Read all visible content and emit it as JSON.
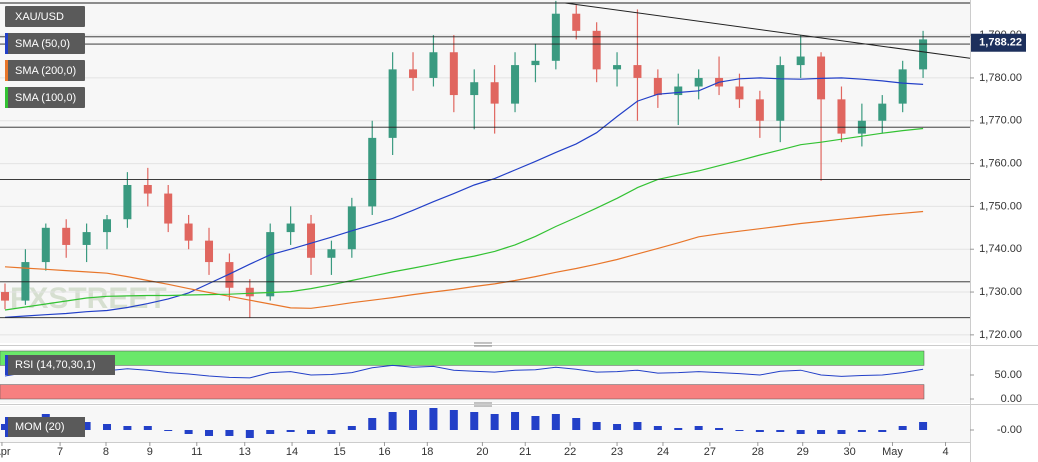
{
  "chart_data": [
    {
      "type": "candlestick",
      "symbol": "XAU/USD",
      "watermark": "FXSTREET",
      "last_price": {
        "value": 1788.22,
        "label": "1,788.22"
      },
      "xlim": [
        -0.245,
        47.3
      ],
      "xticks": [
        {
          "value": -0.15,
          "label": "Apr"
        },
        {
          "value": 2.7,
          "label": "7"
        },
        {
          "value": 4.95,
          "label": "8"
        },
        {
          "value": 7.1,
          "label": "9"
        },
        {
          "value": 9.4,
          "label": "11"
        },
        {
          "value": 11.75,
          "label": "13"
        },
        {
          "value": 14.07,
          "label": "14"
        },
        {
          "value": 16.4,
          "label": "15"
        },
        {
          "value": 18.6,
          "label": "16"
        },
        {
          "value": 20.7,
          "label": "18"
        },
        {
          "value": 23.4,
          "label": "20"
        },
        {
          "value": 25.5,
          "label": "21"
        },
        {
          "value": 27.7,
          "label": "22"
        },
        {
          "value": 30.0,
          "label": "23"
        },
        {
          "value": 32.25,
          "label": "24"
        },
        {
          "value": 34.55,
          "label": "27"
        },
        {
          "value": 36.9,
          "label": "28"
        },
        {
          "value": 39.1,
          "label": "29"
        },
        {
          "value": 41.4,
          "label": "30"
        },
        {
          "value": 43.5,
          "label": "May"
        },
        {
          "value": 46.1,
          "label": "4"
        }
      ],
      "ylim": [
        1718.1,
        1798.2
      ],
      "yticks": [
        {
          "value": 1720,
          "label": "1,720.00"
        },
        {
          "value": 1730,
          "label": "1,730.00"
        },
        {
          "value": 1740,
          "label": "1,740.00"
        },
        {
          "value": 1750,
          "label": "1,750.00"
        },
        {
          "value": 1760,
          "label": "1,760.00"
        },
        {
          "value": 1770,
          "label": "1,770.00"
        },
        {
          "value": 1780,
          "label": "1,780.00"
        },
        {
          "value": 1790,
          "label": "1,790.00"
        }
      ],
      "grid": true,
      "up_color": "#3a9a80",
      "down_color": "#e0665f",
      "open": [
        1730,
        1728,
        1737,
        1745,
        1741,
        1744,
        1747,
        1755,
        1753,
        1746,
        1742,
        1737,
        1731,
        1729,
        1744,
        1746,
        1738,
        1740,
        1750,
        1766,
        1782,
        1780,
        1786,
        1776,
        1779,
        1774,
        1783,
        1784,
        1795,
        1791,
        1782,
        1783,
        1780,
        1776,
        1778,
        1780,
        1778,
        1775,
        1770,
        1783,
        1785,
        1775,
        1767,
        1770,
        1774,
        1782
      ],
      "high": [
        1732,
        1740,
        1746,
        1747,
        1746,
        1748,
        1758,
        1759,
        1755,
        1748,
        1745,
        1739,
        1733,
        1746,
        1750,
        1748,
        1742,
        1752,
        1770,
        1786,
        1786,
        1790,
        1790,
        1782,
        1783,
        1786,
        1788,
        1798,
        1797,
        1793,
        1786,
        1796,
        1782,
        1781,
        1782,
        1785,
        1781,
        1777,
        1785,
        1790,
        1786,
        1778,
        1774,
        1776,
        1784,
        1791
      ],
      "low": [
        1726,
        1727,
        1735,
        1738,
        1737,
        1740,
        1745,
        1750,
        1744,
        1740,
        1734,
        1728,
        1724,
        1728,
        1741,
        1734,
        1734,
        1738,
        1748,
        1762,
        1777,
        1778,
        1772,
        1768,
        1767,
        1772,
        1779,
        1782,
        1789,
        1779,
        1778,
        1770,
        1773,
        1769,
        1775,
        1776,
        1773,
        1766,
        1765,
        1780,
        1756,
        1765,
        1764,
        1767,
        1772,
        1780
      ],
      "close": [
        1728,
        1737,
        1745,
        1741,
        1744,
        1747,
        1755,
        1753,
        1746,
        1742,
        1737,
        1731,
        1729,
        1744,
        1746,
        1738,
        1740,
        1750,
        1766,
        1782,
        1780,
        1786,
        1776,
        1779,
        1774,
        1783,
        1784,
        1795,
        1791,
        1782,
        1783,
        1780,
        1776,
        1778,
        1780,
        1778,
        1775,
        1770,
        1783,
        1785,
        1775,
        1767,
        1770,
        1774,
        1782,
        1789
      ],
      "series": [
        {
          "name": "SMA (50,0)",
          "color": "#2340c8",
          "values": [
            1724.1,
            1724.4,
            1724.7,
            1725,
            1725.4,
            1725.7,
            1726.4,
            1727.3,
            1728.4,
            1729.8,
            1732,
            1734.2,
            1736.5,
            1738.7,
            1740,
            1741.4,
            1742.8,
            1744.3,
            1745.7,
            1747.2,
            1749.1,
            1751.1,
            1753,
            1755,
            1756.5,
            1758.5,
            1760.5,
            1762.6,
            1764.6,
            1767.2,
            1771,
            1774.6,
            1776.2,
            1776.6,
            1777,
            1779,
            1779.8,
            1780,
            1779.8,
            1779.7,
            1779.9,
            1780,
            1779.7,
            1779.3,
            1778.8,
            1778.5
          ]
        },
        {
          "name": "SMA (200,0)",
          "color": "#e8762a",
          "values": [
            1735.9,
            1735.6,
            1735.3,
            1735,
            1734.7,
            1734.4,
            1733.6,
            1732.7,
            1731.8,
            1730.8,
            1729.9,
            1729,
            1728.1,
            1727.2,
            1726.3,
            1726.2,
            1726.8,
            1727.5,
            1728.1,
            1728.7,
            1729.4,
            1730,
            1730.6,
            1731.3,
            1731.9,
            1732.7,
            1733.6,
            1734.6,
            1735.5,
            1736.5,
            1737.6,
            1738.9,
            1740.2,
            1741.5,
            1742.9,
            1743.6,
            1744.2,
            1744.8,
            1745.4,
            1746,
            1746.5,
            1747,
            1747.5,
            1748,
            1748.4,
            1748.8
          ]
        },
        {
          "name": "SMA (100,0)",
          "color": "#33c233",
          "values": [
            1725.8,
            1726.5,
            1727.2,
            1727.9,
            1728.6,
            1729,
            1729.1,
            1729.2,
            1729.2,
            1729.3,
            1729.4,
            1729.5,
            1729.7,
            1729.9,
            1730.1,
            1730.8,
            1731.7,
            1732.7,
            1733.7,
            1734.7,
            1735.6,
            1736.5,
            1737.5,
            1738.4,
            1739.5,
            1741,
            1743,
            1745.3,
            1747.4,
            1749.6,
            1751.9,
            1754.4,
            1756.3,
            1757.3,
            1758.3,
            1759.5,
            1760.7,
            1762,
            1763.2,
            1764.4,
            1765,
            1765.7,
            1766.4,
            1767.1,
            1767.7,
            1768.2
          ]
        }
      ],
      "levels": [
        1797.5,
        1789.6,
        1787.9,
        1768.5,
        1756.3,
        1732.4,
        1724
      ],
      "level_color": "#222222",
      "trendline": {
        "x": [
          27.45,
          47.3
        ],
        "y": [
          1797.5,
          1784.6
        ]
      }
    },
    {
      "type": "line",
      "ylim": [
        0,
        100
      ],
      "yticks": [
        {
          "value": 50,
          "label": "50.00"
        },
        {
          "value": 0,
          "label": "0.00"
        }
      ],
      "bands": [
        {
          "range": [
            70,
            100
          ],
          "color": "#6ae86a"
        },
        {
          "range": [
            0,
            30
          ],
          "color": "#f78080"
        }
      ],
      "series": [
        {
          "name": "RSI (14,70,30,1)",
          "color": "#2340c8",
          "values": [
            48,
            55,
            60,
            57,
            58,
            59,
            63,
            60,
            55,
            52,
            48,
            45,
            44,
            55,
            57,
            50,
            51,
            55,
            65,
            70,
            66,
            68,
            60,
            58,
            56,
            60,
            61,
            66,
            62,
            56,
            57,
            60,
            54,
            55,
            57,
            55,
            53,
            50,
            58,
            60,
            50,
            47,
            49,
            50,
            55,
            62
          ]
        }
      ]
    },
    {
      "type": "bar",
      "ylim": [
        -5,
        11
      ],
      "yticks": [
        {
          "value": 0,
          "label": "-0.00"
        }
      ],
      "series": [
        {
          "name": "MOM (20)",
          "color": "#2340c8",
          "values": [
            3,
            5,
            8,
            6,
            4,
            3,
            2,
            2,
            0,
            -2,
            -3,
            -3,
            -4,
            -2,
            -1,
            -2,
            -2,
            2,
            6,
            9,
            10,
            11,
            10,
            9,
            8,
            9,
            7,
            8,
            6,
            4,
            3,
            4,
            2,
            1,
            2,
            1,
            0,
            -1,
            -1,
            -2,
            -2,
            -2,
            -1,
            -1,
            2,
            4
          ]
        }
      ]
    }
  ]
}
